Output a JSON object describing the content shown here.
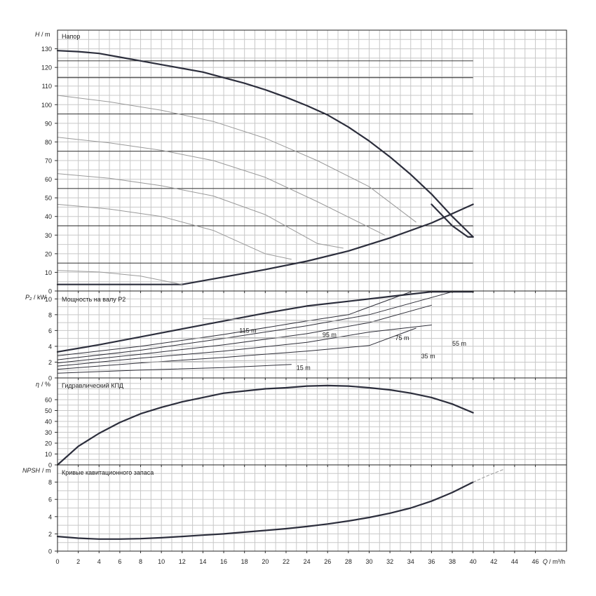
{
  "chart_data": [
    {
      "type": "line",
      "title": "Напор",
      "ylabel_symbol": "H",
      "ylabel_unit": "/ m",
      "xlim": [
        0,
        49
      ],
      "ylim": [
        0,
        140
      ],
      "yticks": [
        0,
        10,
        20,
        30,
        40,
        50,
        60,
        70,
        80,
        90,
        100,
        110,
        120,
        130
      ],
      "guides": [
        123.5,
        114.5,
        95,
        75,
        55,
        35,
        15
      ],
      "series": [
        {
          "role": "envelope-top",
          "x": [
            0,
            2,
            4,
            6,
            8,
            10,
            12,
            14,
            16,
            18,
            20,
            22,
            24,
            26,
            28,
            30,
            32,
            34,
            36,
            38,
            40
          ],
          "y": [
            129,
            128.5,
            127.5,
            125.5,
            123.5,
            121.5,
            119.5,
            117.5,
            114.5,
            111.5,
            108,
            104,
            99.5,
            94.5,
            88,
            80.5,
            72,
            62.5,
            52,
            40,
            29
          ]
        },
        {
          "role": "envelope-right",
          "x": [
            40,
            39.5,
            38,
            36
          ],
          "y": [
            29,
            29,
            35,
            46.5
          ]
        },
        {
          "role": "envelope-bottom",
          "x": [
            0,
            12,
            16,
            20,
            24,
            28,
            32,
            36,
            40
          ],
          "y": [
            3.5,
            3.5,
            7.5,
            11.5,
            16,
            21.5,
            28.5,
            36.5,
            46.5
          ]
        },
        {
          "role": "speed-curve",
          "x": [
            0,
            5,
            10,
            15,
            20,
            25,
            30,
            34.5
          ],
          "y": [
            105,
            101.5,
            97,
            91,
            82,
            70,
            56,
            37
          ]
        },
        {
          "role": "speed-curve",
          "x": [
            0,
            5,
            10,
            15,
            20,
            25,
            31.5
          ],
          "y": [
            82.5,
            79.5,
            75.5,
            70,
            61,
            48,
            30
          ]
        },
        {
          "role": "speed-curve",
          "x": [
            0,
            5,
            10,
            15,
            20,
            25,
            27.5
          ],
          "y": [
            63,
            60.5,
            56.5,
            51,
            41,
            25.5,
            23
          ]
        },
        {
          "role": "speed-curve",
          "x": [
            0,
            5,
            10,
            15,
            20,
            22.5
          ],
          "y": [
            46.5,
            44,
            40,
            32.5,
            20,
            17
          ]
        },
        {
          "role": "speed-curve",
          "x": [
            0,
            4,
            8,
            12
          ],
          "y": [
            11,
            10.2,
            8,
            3.5
          ]
        }
      ]
    },
    {
      "type": "line",
      "title": "Мощность на валу P2",
      "ylabel_symbol": "P₂",
      "ylabel_unit": "/ kW",
      "xlim": [
        0,
        49
      ],
      "ylim": [
        0,
        11
      ],
      "yticks": [
        0,
        2,
        4,
        6,
        8,
        10
      ],
      "curve_labels": [
        {
          "text": "115 m",
          "x": 17.5,
          "y": 5.7
        },
        {
          "text": "95 m",
          "x": 25.5,
          "y": 5.2
        },
        {
          "text": "75 m",
          "x": 32.5,
          "y": 4.8
        },
        {
          "text": "55 m",
          "x": 38,
          "y": 4.1
        },
        {
          "text": "35 m",
          "x": 35,
          "y": 2.5
        },
        {
          "text": "15 m",
          "x": 23,
          "y": 1
        }
      ],
      "series": [
        {
          "role": "envelope",
          "x": [
            0,
            4,
            8,
            12,
            16,
            20,
            24,
            28,
            32,
            36,
            40
          ],
          "y": [
            3.3,
            4.2,
            5.2,
            6.2,
            7.2,
            8.2,
            9.1,
            9.7,
            10.3,
            10.9,
            10.9
          ]
        },
        {
          "role": "speed-curve",
          "x": [
            0,
            8,
            16,
            24,
            28,
            34
          ],
          "y": [
            2.8,
            4.0,
            5.5,
            7.2,
            8.0,
            10.9
          ]
        },
        {
          "role": "speed-curve",
          "x": [
            0,
            8,
            16,
            24,
            30,
            38
          ],
          "y": [
            2.3,
            3.5,
            5.0,
            6.6,
            8.0,
            10.9
          ]
        },
        {
          "role": "speed-curve",
          "x": [
            0,
            8,
            16,
            24,
            30,
            36
          ],
          "y": [
            1.9,
            3.0,
            4.2,
            5.6,
            7.0,
            9.2
          ]
        },
        {
          "role": "speed-curve",
          "x": [
            0,
            8,
            16,
            24,
            30,
            36
          ],
          "y": [
            1.5,
            2.5,
            3.4,
            4.5,
            5.8,
            6.7
          ]
        },
        {
          "role": "speed-curve",
          "x": [
            0,
            8,
            16,
            24,
            30,
            34.5
          ],
          "y": [
            1.1,
            1.9,
            2.6,
            3.4,
            4.1,
            6.3
          ]
        },
        {
          "role": "speed-curve",
          "x": [
            0,
            8,
            16,
            22.5
          ],
          "y": [
            0.6,
            1.0,
            1.3,
            1.7
          ]
        },
        {
          "role": "hint",
          "x": [
            14,
            36
          ],
          "y": [
            7.5,
            7.0
          ]
        },
        {
          "role": "hint",
          "x": [
            10,
            30
          ],
          "y": [
            5.0,
            5.2
          ]
        },
        {
          "role": "hint",
          "x": [
            8,
            24
          ],
          "y": [
            2.0,
            2.3
          ]
        }
      ]
    },
    {
      "type": "line",
      "title": "Гидравлический КПД",
      "ylabel_symbol": "η",
      "ylabel_unit": "/ %",
      "xlim": [
        0,
        49
      ],
      "ylim": [
        0,
        80
      ],
      "yticks": [
        0,
        10,
        20,
        30,
        40,
        50,
        60
      ],
      "series": [
        {
          "role": "efficiency",
          "x": [
            0,
            2,
            4,
            6,
            8,
            10,
            12,
            14,
            16,
            18,
            20,
            22,
            24,
            26,
            28,
            30,
            32,
            34,
            36,
            38,
            40
          ],
          "y": [
            0,
            17,
            29,
            39,
            47,
            53,
            58,
            62,
            66,
            68,
            70,
            71,
            72.5,
            73,
            72.5,
            71,
            69,
            66,
            62,
            56,
            48
          ]
        }
      ]
    },
    {
      "type": "line",
      "title": "Кривые кавитационного запаса",
      "ylabel_symbol": "NPSH",
      "ylabel_unit": "/ m",
      "xlabel_symbol": "Q",
      "xlabel_unit": "/ m³/h",
      "xlim": [
        0,
        49
      ],
      "ylim": [
        0,
        10
      ],
      "yticks": [
        0,
        2,
        4,
        6,
        8
      ],
      "xticks": [
        0,
        2,
        4,
        6,
        8,
        10,
        12,
        14,
        16,
        18,
        20,
        22,
        24,
        26,
        28,
        30,
        32,
        34,
        36,
        38,
        40,
        42,
        44,
        46
      ],
      "series": [
        {
          "role": "npsh",
          "x": [
            0,
            2,
            4,
            6,
            8,
            10,
            12,
            14,
            16,
            18,
            20,
            22,
            24,
            26,
            28,
            30,
            32,
            34,
            36,
            38,
            40
          ],
          "y": [
            1.7,
            1.5,
            1.4,
            1.4,
            1.45,
            1.55,
            1.7,
            1.85,
            2.0,
            2.2,
            2.4,
            2.6,
            2.85,
            3.15,
            3.5,
            3.9,
            4.4,
            5.0,
            5.8,
            6.8,
            8.0
          ]
        },
        {
          "role": "npsh-extension",
          "x": [
            40,
            41.5,
            43
          ],
          "y": [
            8.0,
            8.8,
            9.5
          ]
        }
      ]
    }
  ]
}
